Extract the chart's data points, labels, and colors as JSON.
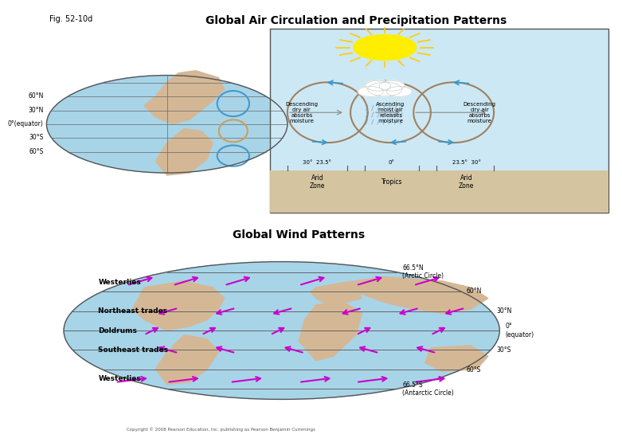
{
  "fig_label": "Fig. 52-10d",
  "top_title": "Global Air Circulation and Precipitation Patterns",
  "bottom_title": "Global Wind Patterns",
  "bg_color": "#ffffff",
  "top_panel_bg": "#cce8f4",
  "bottom_panel_bg": "#cce8f4",
  "globe_bg": "#a8d4e8",
  "land_color": "#d4b896",
  "circulation_text_left": "Descending\ndry air\nabsorbs\nmoisture",
  "circulation_text_mid": "Ascending\nmoist air\nreleases\nmoisture",
  "circulation_text_right": "Descending\ndry air\nabsorbs\nmoisture",
  "zone_labels_bottom": [
    "30°  23.5°",
    "0°",
    "23.5°30°"
  ],
  "zone_names": [
    "Arid\nZone",
    "Tropics",
    "Arid\nZone"
  ],
  "globe_lat_labels": [
    "60°N",
    "30°N",
    "0°(equator)",
    "30°S",
    "60°S"
  ],
  "wind_labels": [
    "Westerlies",
    "Northeast trades",
    "Doldrums",
    "Southeast trades",
    "Westerlies"
  ],
  "right_labels": [
    "66.5°N\n(Arctic Circle)",
    "60°N",
    "30°N",
    "0°\n(equator)",
    "30°S",
    "60°S",
    "66.5°S\n(Antarctic Circle)"
  ],
  "copyright": "Copyright © 2008 Pearson Education, Inc. publishing as Pearson Benjamin Cummings",
  "arrow_color": "#cc00cc",
  "circulation_arrow_color": "#3399cc",
  "cell_border_color": "#a0a0a0"
}
